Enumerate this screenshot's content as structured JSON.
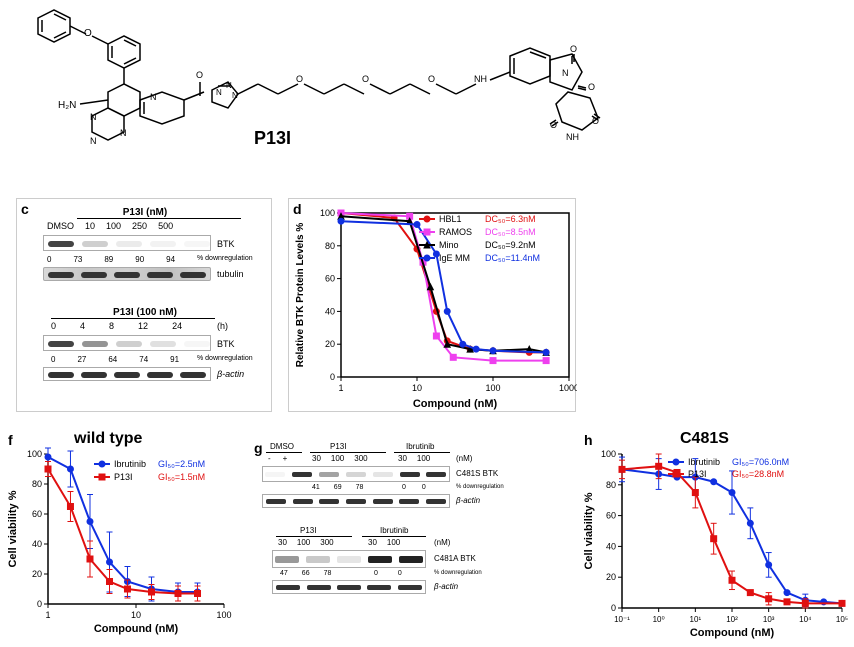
{
  "compound_name": "P13I",
  "panel_c": {
    "top_title": "P13I (nM)",
    "top_headers": [
      "DMSO",
      "10",
      "100",
      "250",
      "500"
    ],
    "top_btk_label": "BTK",
    "top_downreg_values": [
      "0",
      "73",
      "89",
      "90",
      "94"
    ],
    "top_downreg_label": "% downregulation",
    "top_tubulin_label": "tubulin",
    "bottom_title": "P13I (100 nM)",
    "bottom_headers": [
      "0",
      "4",
      "8",
      "12",
      "24"
    ],
    "bottom_headers_unit": "(h)",
    "bottom_btk_label": "BTK",
    "bottom_downreg_values": [
      "0",
      "27",
      "64",
      "74",
      "91"
    ],
    "bottom_downreg_label": "% downregulation",
    "bottom_actin_label": "β-actin",
    "bottom_actin_style": "italic"
  },
  "panel_d": {
    "ylabel": "Relative BTK Protein Levels %",
    "xlabel": "Compound (nM)",
    "xticks": [
      "1",
      "10",
      "100",
      "1000"
    ],
    "yticks": [
      "0",
      "20",
      "40",
      "60",
      "80",
      "100"
    ],
    "series": [
      {
        "name": "HBL1",
        "color": "#e01010",
        "dc50": "DC₅₀=6.3nM",
        "dc50_color": "#e01010",
        "marker": "circle"
      },
      {
        "name": "RAMOS",
        "color": "#ee40ee",
        "dc50": "DC₅₀=8.5nM",
        "dc50_color": "#ee40ee",
        "marker": "square"
      },
      {
        "name": "Mino",
        "color": "#000000",
        "dc50": "DC₅₀=9.2nM",
        "dc50_color": "#000000",
        "marker": "triangle"
      },
      {
        "name": "IgE MM",
        "color": "#1030e0",
        "dc50": "DC₅₀=11.4nM",
        "dc50_color": "#1030e0",
        "marker": "circle"
      }
    ],
    "curves": {
      "HBL1": [
        [
          1,
          100
        ],
        [
          5,
          97
        ],
        [
          10,
          78
        ],
        [
          18,
          40
        ],
        [
          25,
          22
        ],
        [
          50,
          17
        ],
        [
          100,
          16
        ],
        [
          300,
          15
        ],
        [
          500,
          15
        ]
      ],
      "RAMOS": [
        [
          1,
          100
        ],
        [
          8,
          98
        ],
        [
          12,
          70
        ],
        [
          18,
          25
        ],
        [
          30,
          12
        ],
        [
          100,
          10
        ],
        [
          500,
          10
        ]
      ],
      "Mino": [
        [
          1,
          98
        ],
        [
          8,
          95
        ],
        [
          15,
          55
        ],
        [
          25,
          20
        ],
        [
          50,
          17
        ],
        [
          100,
          16
        ],
        [
          300,
          17
        ],
        [
          500,
          15
        ]
      ],
      "IgE_MM": [
        [
          1,
          95
        ],
        [
          10,
          93
        ],
        [
          18,
          75
        ],
        [
          25,
          40
        ],
        [
          40,
          20
        ],
        [
          60,
          17
        ],
        [
          100,
          16
        ],
        [
          500,
          15
        ]
      ]
    }
  },
  "panel_f": {
    "title": "wild type",
    "ylabel": "Cell viability %",
    "xlabel": "Compound (nM)",
    "xticks": [
      "1",
      "10",
      "100"
    ],
    "yticks": [
      "0",
      "20",
      "40",
      "60",
      "80",
      "100"
    ],
    "series": [
      {
        "name": "Ibrutinib",
        "color": "#1030e0",
        "gi50": "GI₅₀=2.5nM",
        "gi50_color": "#1030e0",
        "marker": "circle"
      },
      {
        "name": "P13I",
        "color": "#e01010",
        "gi50": "GI₅₀=1.5nM",
        "gi50_color": "#e01010",
        "marker": "square"
      }
    ],
    "curves": {
      "Ibrutinib": [
        [
          1,
          98
        ],
        [
          1.8,
          90
        ],
        [
          3,
          55
        ],
        [
          5,
          28
        ],
        [
          8,
          15
        ],
        [
          15,
          10
        ],
        [
          30,
          8
        ],
        [
          50,
          8
        ]
      ],
      "P13I": [
        [
          1,
          90
        ],
        [
          1.8,
          65
        ],
        [
          3,
          30
        ],
        [
          5,
          15
        ],
        [
          8,
          10
        ],
        [
          15,
          8
        ],
        [
          30,
          7
        ],
        [
          50,
          7
        ]
      ]
    },
    "errors": {
      "Ibrutinib": [
        [
          1,
          6
        ],
        [
          1.8,
          12
        ],
        [
          3,
          18
        ],
        [
          5,
          20
        ],
        [
          8,
          10
        ],
        [
          15,
          8
        ],
        [
          30,
          6
        ],
        [
          50,
          6
        ]
      ],
      "P13I": [
        [
          1,
          5
        ],
        [
          1.8,
          10
        ],
        [
          3,
          12
        ],
        [
          5,
          8
        ],
        [
          8,
          6
        ],
        [
          15,
          5
        ],
        [
          30,
          5
        ],
        [
          50,
          5
        ]
      ]
    }
  },
  "panel_g": {
    "top": {
      "dmso_label": "DMSO",
      "dmso_headers": [
        "-",
        "+"
      ],
      "p13i_label": "P13I",
      "p13i_headers": [
        "30",
        "100",
        "300"
      ],
      "ibr_label": "Ibrutinib",
      "ibr_headers": [
        "30",
        "100"
      ],
      "unit": "(nM)",
      "band_label": "C481S BTK",
      "downreg": [
        "",
        "",
        "41",
        "69",
        "78",
        "0",
        "0"
      ],
      "downreg_label": "% downregulation",
      "actin_label": "β-actin"
    },
    "bottom": {
      "p13i_label": "P13I",
      "p13i_headers": [
        "30",
        "100",
        "300"
      ],
      "ibr_label": "Ibrutinib",
      "ibr_headers": [
        "30",
        "100"
      ],
      "unit": "(nM)",
      "band_label": "C481A BTK",
      "downreg": [
        "47",
        "66",
        "78",
        "0",
        "0"
      ],
      "downreg_label": "% downregulation",
      "actin_label": "β-actin"
    }
  },
  "panel_h": {
    "title": "C481S",
    "ylabel": "Cell viability %",
    "xlabel": "Compound (nM)",
    "xticks": [
      "10⁻¹",
      "10⁰",
      "10¹",
      "10²",
      "10³",
      "10⁴",
      "10⁵"
    ],
    "yticks": [
      "0",
      "20",
      "40",
      "60",
      "80",
      "100"
    ],
    "series": [
      {
        "name": "Ibrutinib",
        "color": "#1030e0",
        "gi50": "GI₅₀=706.0nM",
        "gi50_color": "#1030e0",
        "marker": "circle"
      },
      {
        "name": "P13I",
        "color": "#e01010",
        "gi50": "GI₅₀=28.8nM",
        "gi50_color": "#e01010",
        "marker": "square"
      }
    ],
    "curves": {
      "Ibrutinib": [
        [
          -1,
          90
        ],
        [
          0,
          87
        ],
        [
          0.5,
          85
        ],
        [
          1,
          85
        ],
        [
          1.5,
          82
        ],
        [
          2,
          75
        ],
        [
          2.5,
          55
        ],
        [
          3,
          28
        ],
        [
          3.5,
          10
        ],
        [
          4,
          5
        ],
        [
          4.5,
          4
        ],
        [
          5,
          3
        ]
      ],
      "P13I": [
        [
          -1,
          90
        ],
        [
          0,
          92
        ],
        [
          0.5,
          88
        ],
        [
          1,
          75
        ],
        [
          1.5,
          45
        ],
        [
          2,
          18
        ],
        [
          2.5,
          10
        ],
        [
          3,
          6
        ],
        [
          3.5,
          4
        ],
        [
          4,
          3
        ],
        [
          5,
          3
        ]
      ]
    },
    "errors": {
      "Ibrutinib": [
        [
          -1,
          8
        ],
        [
          0,
          10
        ],
        [
          1,
          12
        ],
        [
          2,
          14
        ],
        [
          2.5,
          10
        ],
        [
          3,
          8
        ],
        [
          4,
          4
        ]
      ],
      "P13I": [
        [
          -1,
          6
        ],
        [
          0,
          8
        ],
        [
          1,
          10
        ],
        [
          1.5,
          10
        ],
        [
          2,
          6
        ],
        [
          3,
          4
        ],
        [
          4,
          3
        ]
      ]
    }
  },
  "colors": {
    "red": "#e01010",
    "blue": "#1030e0",
    "magenta": "#ee40ee",
    "black": "#000000"
  }
}
